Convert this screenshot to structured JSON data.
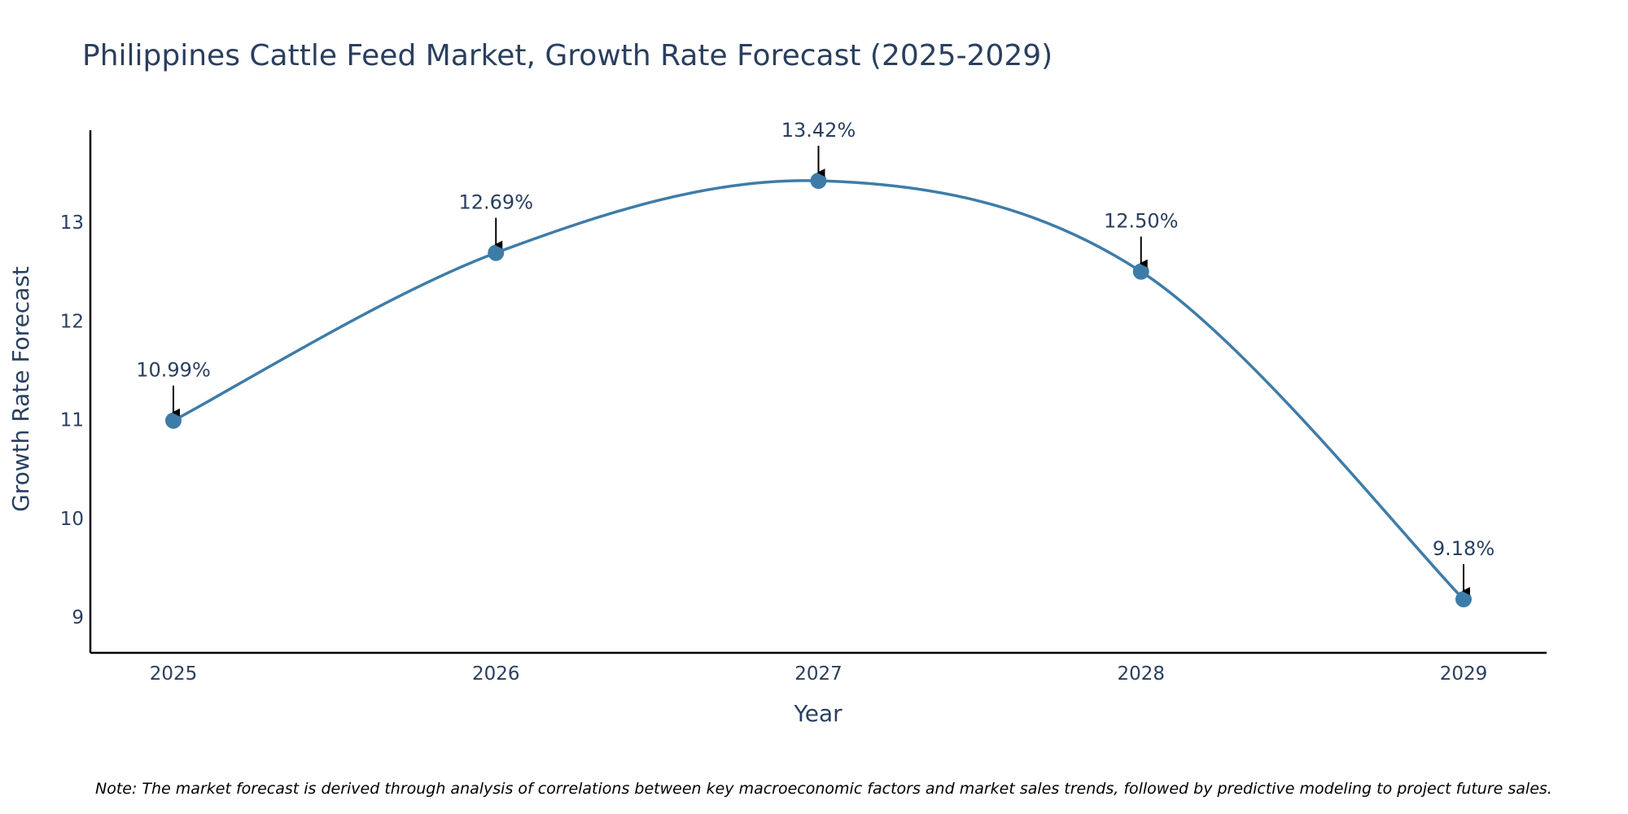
{
  "chart_data": {
    "type": "line",
    "title": "Philippines Cattle Feed Market, Growth Rate Forecast (2025-2029)",
    "xlabel": "Year",
    "ylabel": "Growth Rate Forecast",
    "categories": [
      "2025",
      "2026",
      "2027",
      "2028",
      "2029"
    ],
    "series": [
      {
        "name": "Growth Rate Forecast",
        "values": [
          10.99,
          12.69,
          13.42,
          12.5,
          9.18
        ],
        "labels": [
          "10.99%",
          "12.69%",
          "13.42%",
          "12.50%",
          "9.18%"
        ]
      }
    ],
    "yticks": [
      "9",
      "10",
      "11",
      "12",
      "13"
    ],
    "ylim": [
      8.65,
      13.9
    ],
    "grid": false,
    "line_shape": "spline",
    "colors": {
      "line": "#3e7ca8",
      "marker": "#3e7ca8",
      "axis": "#000000",
      "text": "#2a3f5f",
      "arrow": "#000000"
    },
    "note": "Note: The market forecast is derived through analysis of correlations between key macroeconomic factors and market sales trends, followed by predictive modeling to project future sales."
  }
}
